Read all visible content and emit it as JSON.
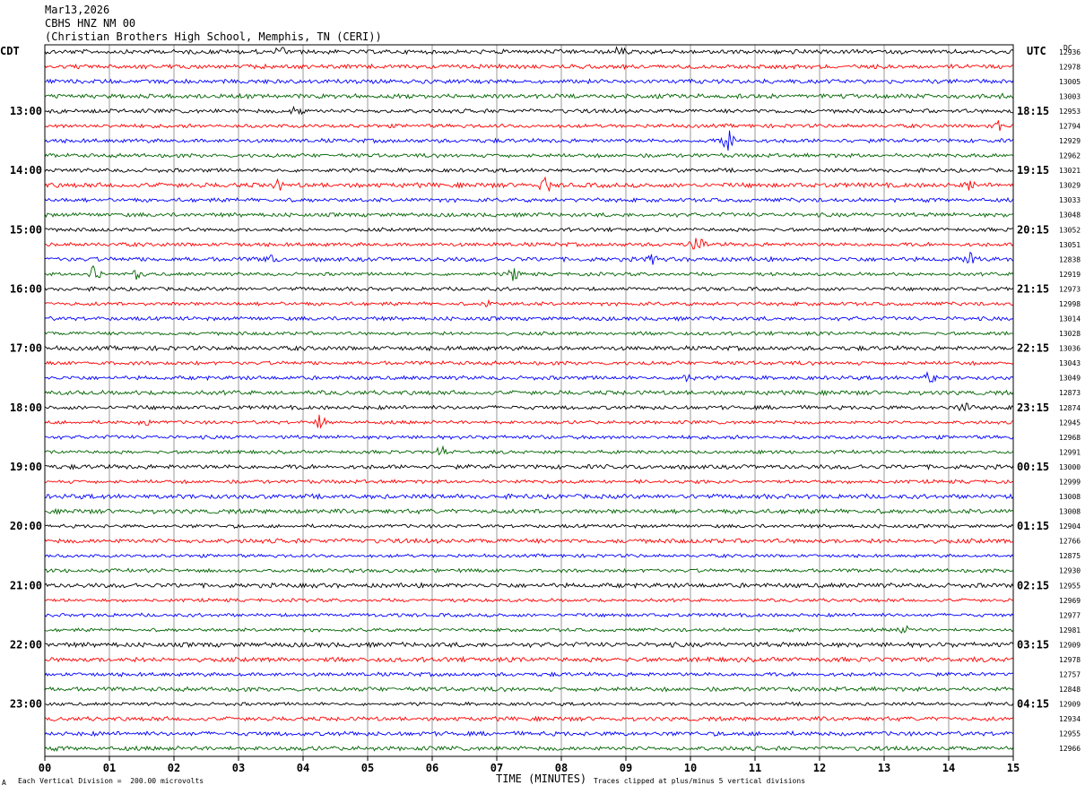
{
  "header": {
    "date": "Mar13,2026",
    "station": "CBHS HNZ NM 00",
    "location": "(Christian Brothers High School, Memphis, TN (CERI))"
  },
  "left_timezone": "CDT",
  "right_timezone": "UTC",
  "dc_label": "DC",
  "footer": {
    "scale_note": "Each Vertical Division =  200.00 microvolts",
    "xlabel": "TIME (MINUTES)",
    "clip_note": "Traces clipped at plus/minus 5 vertical divisions",
    "corner_mark": "A"
  },
  "colors": {
    "trace_cycle": [
      "#000000",
      "#ff0000",
      "#0000ff",
      "#006400"
    ],
    "grid": "#999999",
    "frame": "#000000"
  },
  "chart_data": {
    "type": "line",
    "title": "CBHS HNZ NM 00",
    "xlabel": "TIME (MINUTES)",
    "xlim": [
      0,
      15
    ],
    "x_ticks": [
      "00",
      "01",
      "02",
      "03",
      "04",
      "05",
      "06",
      "07",
      "08",
      "09",
      "10",
      "11",
      "12",
      "13",
      "14",
      "15"
    ],
    "left_time_labels": [
      "13:00",
      "14:00",
      "15:00",
      "16:00",
      "17:00",
      "18:00",
      "19:00",
      "20:00",
      "21:00",
      "22:00",
      "23:00"
    ],
    "right_time_labels": [
      "18:15",
      "19:15",
      "20:15",
      "21:15",
      "22:15",
      "23:15",
      "00:15",
      "01:15",
      "02:15",
      "03:15",
      "04:15"
    ],
    "hour_label_every_n_traces": 4,
    "first_hour_label_trace_index": 4,
    "dc_offsets": [
      12936,
      12978,
      13005,
      13003,
      12953,
      12794,
      12929,
      12962,
      13021,
      13029,
      13033,
      13048,
      13052,
      13051,
      12838,
      12919,
      12973,
      12998,
      13014,
      13028,
      13036,
      13043,
      13049,
      12873,
      12874,
      12945,
      12968,
      12991,
      13000,
      12999,
      13008,
      13008,
      12904,
      12766,
      12875,
      12930,
      12955,
      12969,
      12977,
      12981,
      12909,
      12978,
      12757,
      12848,
      12909,
      12934,
      12955,
      12966
    ],
    "events": [
      {
        "trace": 0,
        "minute": 3.65,
        "amp": 6
      },
      {
        "trace": 0,
        "minute": 8.9,
        "amp": 6
      },
      {
        "trace": 3,
        "minute": 14.95,
        "amp": 6
      },
      {
        "trace": 4,
        "minute": 3.9,
        "amp": 5
      },
      {
        "trace": 5,
        "minute": 14.75,
        "amp": 8
      },
      {
        "trace": 6,
        "minute": 10.6,
        "amp": 12
      },
      {
        "trace": 9,
        "minute": 3.6,
        "amp": 6
      },
      {
        "trace": 9,
        "minute": 7.75,
        "amp": 9
      },
      {
        "trace": 9,
        "minute": 14.35,
        "amp": 6
      },
      {
        "trace": 13,
        "minute": 10.1,
        "amp": 10
      },
      {
        "trace": 14,
        "minute": 3.5,
        "amp": 7
      },
      {
        "trace": 14,
        "minute": 9.4,
        "amp": 9
      },
      {
        "trace": 14,
        "minute": 14.35,
        "amp": 8
      },
      {
        "trace": 15,
        "minute": 0.75,
        "amp": 8
      },
      {
        "trace": 15,
        "minute": 1.45,
        "amp": 8
      },
      {
        "trace": 15,
        "minute": 7.25,
        "amp": 8
      },
      {
        "trace": 17,
        "minute": 6.8,
        "amp": 5
      },
      {
        "trace": 22,
        "minute": 9.95,
        "amp": 6
      },
      {
        "trace": 22,
        "minute": 13.7,
        "amp": 8
      },
      {
        "trace": 24,
        "minute": 14.25,
        "amp": 8
      },
      {
        "trace": 25,
        "minute": 4.25,
        "amp": 8
      },
      {
        "trace": 25,
        "minute": 1.55,
        "amp": 5
      },
      {
        "trace": 27,
        "minute": 6.15,
        "amp": 6
      },
      {
        "trace": 39,
        "minute": 13.3,
        "amp": 6
      }
    ]
  }
}
